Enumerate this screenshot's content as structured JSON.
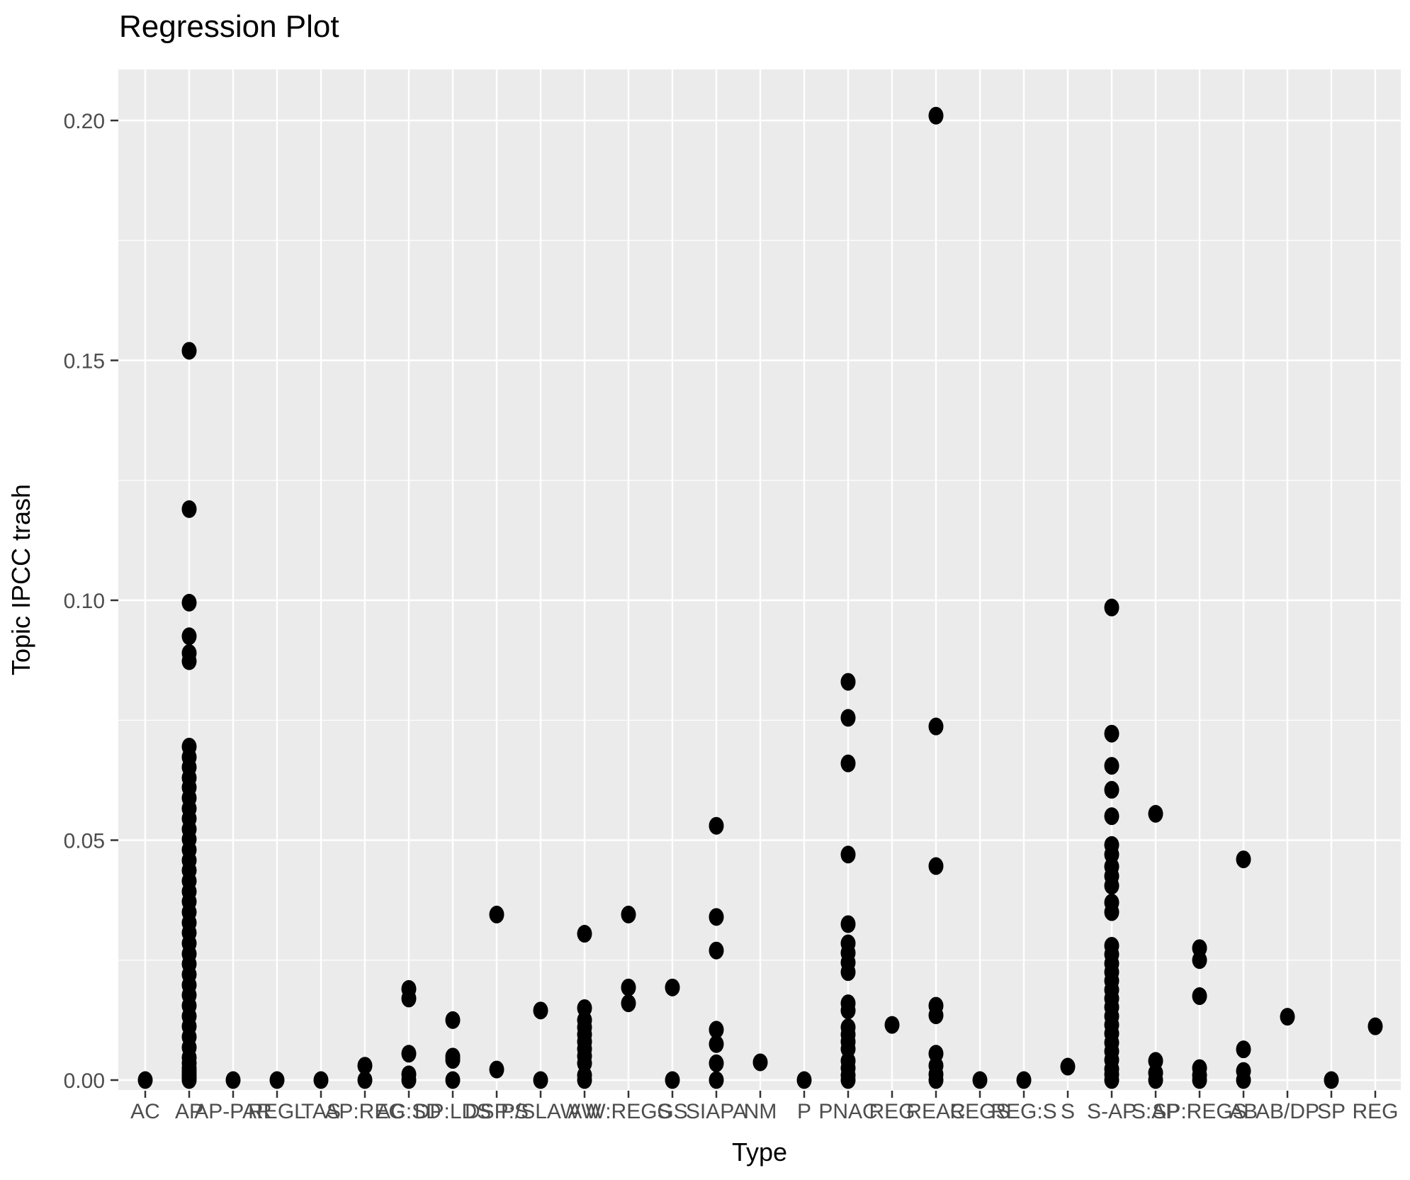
{
  "title": "Regression Plot",
  "x_axis": {
    "label": "Type"
  },
  "y_axis": {
    "label": "Topic IPCC trash",
    "ticks": [
      {
        "label": "0.20",
        "value": 0.2
      },
      {
        "label": "0.15",
        "value": 0.15
      },
      {
        "label": "0.10",
        "value": 0.1
      },
      {
        "label": "0.05",
        "value": 0.05
      },
      {
        "label": "0.00",
        "value": 0.0
      }
    ]
  },
  "chart_data": {
    "type": "scatter",
    "title": "Regression Plot",
    "xlabel": "Type",
    "ylabel": "Topic IPCC trash",
    "legend": false,
    "grid": true,
    "ylim": [
      -0.002,
      0.211
    ],
    "y_major_ticks": [
      0,
      0.05,
      0.1,
      0.15,
      0.2
    ],
    "y_minor_ticks": [
      0.025,
      0.075,
      0.125,
      0.175
    ],
    "colors": {
      "panel_bg": "#EBEBEB",
      "grid": "#FFFFFF",
      "point": "#000000",
      "tick_text": "#4D4D4D",
      "tick_mark": "#333333",
      "title_text": "#000000"
    },
    "categories": [
      "AC",
      "AP",
      "AP-PAR",
      "REGL",
      "TAS",
      "AP:REG",
      "AC:SD",
      "DP:LDS",
      "DSP:S",
      "P/SLAW",
      "AW",
      "W:REGS",
      "GS",
      "SIAPA",
      "NM",
      "P",
      "PNAC",
      "REG",
      "REAC",
      "REGS",
      "REG:S",
      "S",
      "S-AP",
      "S:AP",
      "SP:REGS",
      "AB",
      "AB/DP",
      "SP",
      "REG"
    ],
    "series": [
      {
        "name": "Topic IPCC trash by Type",
        "points_by_category": [
          [
            0
          ],
          [
            0.152,
            0.119,
            0.0995,
            0.0925,
            0.089,
            0.0873,
            0.0695,
            0.0673,
            0.0652,
            0.063,
            0.061,
            0.0588,
            0.0566,
            0.0545,
            0.0523,
            0.0502,
            0.048,
            0.0458,
            0.0437,
            0.0415,
            0.0393,
            0.0372,
            0.035,
            0.0328,
            0.0307,
            0.0285,
            0.0263,
            0.0242,
            0.022,
            0.0198,
            0.0177,
            0.0155,
            0.0133,
            0.0112,
            0.009,
            0.0068,
            0.0047,
            0.0035,
            0.0025,
            0.0018,
            0.0012,
            0.0008,
            0.0004,
            0
          ],
          [
            0
          ],
          [
            0
          ],
          [
            0
          ],
          [
            0,
            0.003
          ],
          [
            0,
            0.0012,
            0.0055,
            0.017,
            0.019
          ],
          [
            0,
            0.0042,
            0.0049,
            0.0125
          ],
          [
            0.0022,
            0.0345
          ],
          [
            0,
            0.0145
          ],
          [
            0,
            0.001,
            0.0035,
            0.005,
            0.0065,
            0.008,
            0.0095,
            0.011,
            0.0125,
            0.015,
            0.0305
          ],
          [
            0.016,
            0.0193,
            0.0345
          ],
          [
            0,
            0.0193
          ],
          [
            0,
            0.0035,
            0.0075,
            0.0105,
            0.027,
            0.034,
            0.053
          ],
          [
            0.0037
          ],
          [
            0
          ],
          [
            0.083,
            0.0755,
            0.066,
            0.047,
            0.0325,
            0.0285,
            0.0265,
            0.0245,
            0.0225,
            0.016,
            0.0145,
            0.011,
            0.0095,
            0.008,
            0.0065,
            0.004,
            0.0025,
            0.001,
            0
          ],
          [
            0.0115
          ],
          [
            0.201,
            0.0737,
            0.0446,
            0.0155,
            0.0135,
            0.0055,
            0.003,
            0.0012,
            0
          ],
          [
            0
          ],
          [
            0
          ],
          [
            0.0028
          ],
          [
            0.0985,
            0.0722,
            0.0655,
            0.0605,
            0.055,
            0.049,
            0.047,
            0.0445,
            0.0425,
            0.0405,
            0.037,
            0.035,
            0.028,
            0.0262,
            0.0243,
            0.0225,
            0.0207,
            0.0188,
            0.017,
            0.0152,
            0.0133,
            0.0115,
            0.0097,
            0.0078,
            0.006,
            0.0042,
            0.0023,
            0.0012,
            0
          ],
          [
            0.0555,
            0.004,
            0.0015,
            0
          ],
          [
            0.0275,
            0.025,
            0.0175,
            0.0025,
            0.001,
            0
          ],
          [
            0.046,
            0.0064,
            0.0019,
            0
          ],
          [
            0.0132
          ],
          [
            0
          ],
          [
            0.0112
          ]
        ]
      }
    ]
  }
}
